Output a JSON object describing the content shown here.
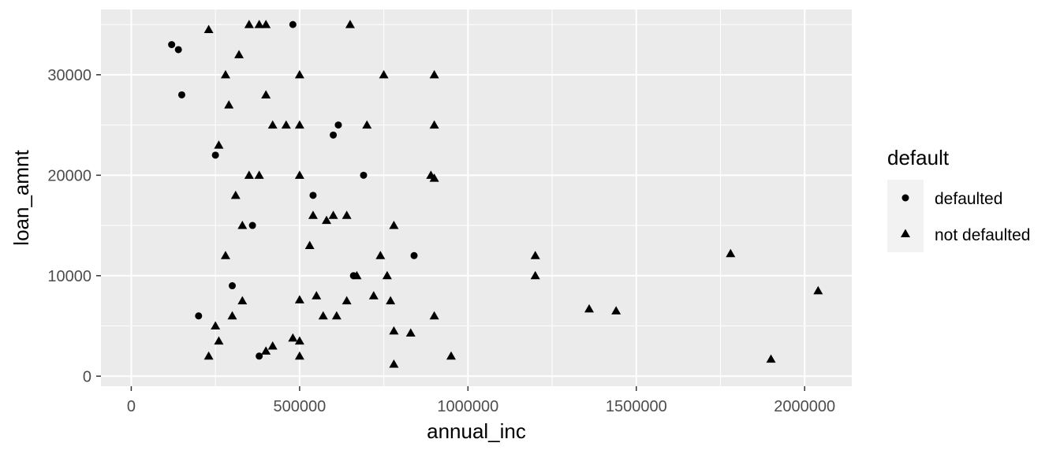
{
  "chart_data": {
    "type": "scatter",
    "xlabel": "annual_inc",
    "ylabel": "loan_amnt",
    "xlim": [
      -90000,
      2140000
    ],
    "ylim": [
      -1000,
      36500
    ],
    "x_ticks": [
      0,
      500000,
      1000000,
      1500000,
      2000000
    ],
    "x_tick_labels": [
      "0",
      "500000",
      "1000000",
      "1500000",
      "2000000"
    ],
    "y_ticks": [
      0,
      10000,
      20000,
      30000
    ],
    "y_tick_labels": [
      "0",
      "10000",
      "20000",
      "30000"
    ],
    "grid": true,
    "legend": {
      "title": "default",
      "position": "right",
      "entries": [
        {
          "label": "defaulted",
          "shape": "circle"
        },
        {
          "label": "not defaulted",
          "shape": "triangle"
        }
      ]
    },
    "background": "#ebebeb",
    "series": [
      {
        "name": "defaulted",
        "shape": "circle",
        "points": [
          [
            120000,
            33000
          ],
          [
            140000,
            32500
          ],
          [
            480000,
            35000
          ],
          [
            600000,
            24000
          ],
          [
            615000,
            25000
          ],
          [
            690000,
            20000
          ],
          [
            540000,
            18000
          ],
          [
            840000,
            12000
          ],
          [
            660000,
            10000
          ],
          [
            380000,
            2000
          ],
          [
            360000,
            15000
          ],
          [
            200000,
            6000
          ],
          [
            150000,
            28000
          ],
          [
            250000,
            22000
          ],
          [
            300000,
            9000
          ]
        ]
      },
      {
        "name": "not defaulted",
        "shape": "triangle",
        "points": [
          [
            650000,
            35000
          ],
          [
            350000,
            35000
          ],
          [
            380000,
            35000
          ],
          [
            400000,
            35000
          ],
          [
            230000,
            34500
          ],
          [
            320000,
            32000
          ],
          [
            500000,
            30000
          ],
          [
            750000,
            30000
          ],
          [
            900000,
            30000
          ],
          [
            400000,
            28000
          ],
          [
            700000,
            25000
          ],
          [
            900000,
            25000
          ],
          [
            500000,
            25000
          ],
          [
            460000,
            25000
          ],
          [
            420000,
            25000
          ],
          [
            890000,
            20000
          ],
          [
            900000,
            19700
          ],
          [
            500000,
            20000
          ],
          [
            380000,
            20000
          ],
          [
            600000,
            16000
          ],
          [
            580000,
            15500
          ],
          [
            540000,
            16000
          ],
          [
            640000,
            16000
          ],
          [
            780000,
            15000
          ],
          [
            530000,
            13000
          ],
          [
            740000,
            12000
          ],
          [
            1200000,
            12000
          ],
          [
            1780000,
            12200
          ],
          [
            1200000,
            10000
          ],
          [
            760000,
            10000
          ],
          [
            670000,
            10000
          ],
          [
            720000,
            8000
          ],
          [
            640000,
            7500
          ],
          [
            770000,
            7500
          ],
          [
            550000,
            8000
          ],
          [
            500000,
            7600
          ],
          [
            1360000,
            6700
          ],
          [
            1440000,
            6500
          ],
          [
            2040000,
            8500
          ],
          [
            900000,
            6000
          ],
          [
            570000,
            6000
          ],
          [
            610000,
            6000
          ],
          [
            780000,
            4500
          ],
          [
            830000,
            4300
          ],
          [
            500000,
            3500
          ],
          [
            480000,
            3800
          ],
          [
            400000,
            2500
          ],
          [
            420000,
            3000
          ],
          [
            950000,
            2000
          ],
          [
            780000,
            1200
          ],
          [
            1900000,
            1700
          ],
          [
            500000,
            2000
          ],
          [
            300000,
            6000
          ],
          [
            330000,
            7500
          ],
          [
            280000,
            12000
          ],
          [
            310000,
            18000
          ],
          [
            260000,
            23000
          ],
          [
            350000,
            20000
          ],
          [
            330000,
            15000
          ],
          [
            290000,
            27000
          ],
          [
            280000,
            30000
          ],
          [
            250000,
            5000
          ],
          [
            230000,
            2000
          ],
          [
            260000,
            3500
          ]
        ]
      }
    ]
  }
}
